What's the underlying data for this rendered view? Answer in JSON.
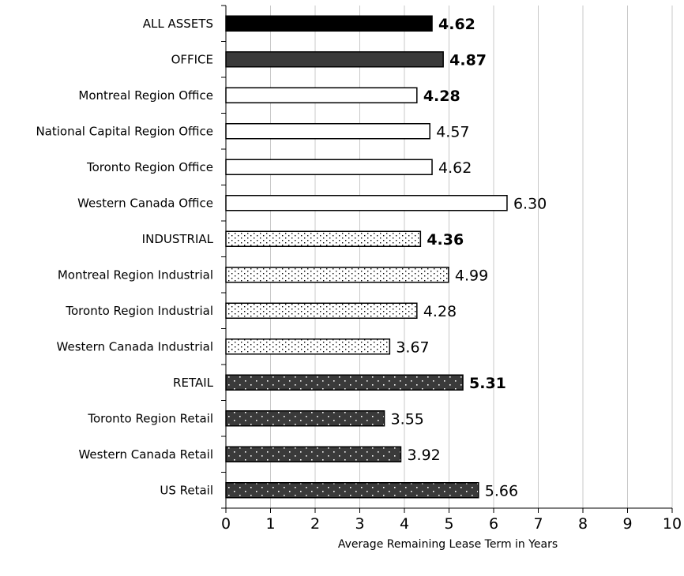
{
  "chart_data": {
    "type": "bar",
    "orientation": "horizontal",
    "xlabel": "Average Remaining Lease Term in Years",
    "xlim": [
      0,
      10
    ],
    "xticks": [
      "0",
      "1",
      "2",
      "3",
      "4",
      "5",
      "6",
      "7",
      "8",
      "9",
      "10"
    ],
    "grid": "vertical",
    "categories": [
      "ALL ASSETS",
      "OFFICE",
      "Montreal Region Office",
      "National Capital Region Office",
      "Toronto Region Office",
      "Western Canada Office",
      "INDUSTRIAL",
      "Montreal Region Industrial",
      "Toronto Region Industrial",
      "Western Canada Industrial",
      "RETAIL",
      "Toronto Region Retail",
      "Western Canada Retail",
      "US Retail"
    ],
    "values": [
      4.62,
      4.87,
      4.28,
      4.57,
      4.62,
      6.3,
      4.36,
      4.99,
      4.28,
      3.67,
      5.31,
      3.55,
      3.92,
      5.66
    ],
    "value_labels": [
      "4.62",
      "4.87",
      "4.28",
      "4.57",
      "4.62",
      "6.30",
      "4.36",
      "4.99",
      "4.28",
      "3.67",
      "5.31",
      "3.55",
      "3.92",
      "5.66"
    ],
    "label_bold": [
      true,
      true,
      true,
      false,
      false,
      false,
      true,
      false,
      false,
      false,
      true,
      false,
      false,
      false
    ],
    "styles": [
      "solid-black",
      "solid-dark",
      "white",
      "white",
      "white",
      "white",
      "dots-light",
      "dots-light",
      "dots-light",
      "dots-light",
      "dots-dark",
      "dots-dark",
      "dots-dark",
      "dots-dark"
    ],
    "colors": {
      "solid-black": "#000000",
      "solid-dark": "#3a3a3a",
      "white": "#ffffff",
      "dots-light": "#ffffff",
      "dots-dark": "#3a3a3a",
      "grid": "#c8c8c8",
      "axis": "#000000"
    }
  }
}
